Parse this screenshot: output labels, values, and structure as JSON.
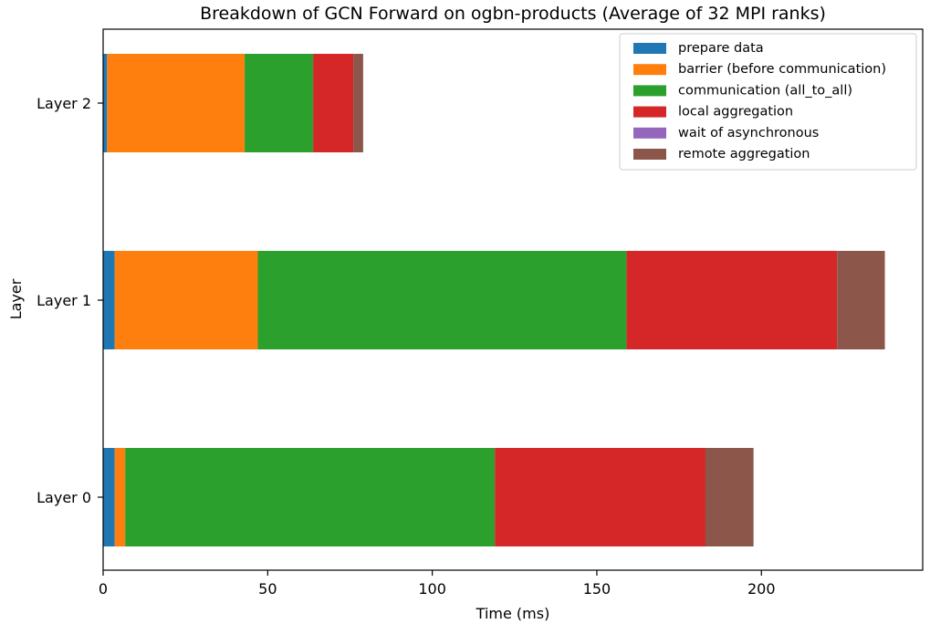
{
  "chart_data": {
    "type": "bar",
    "orientation": "horizontal",
    "stacked": true,
    "title": "Breakdown of GCN Forward on ogbn-products (Average of 32 MPI ranks)",
    "xlabel": "Time (ms)",
    "ylabel": "Layer",
    "xlim": [
      0,
      249
    ],
    "xticks": [
      0,
      50,
      100,
      150,
      200
    ],
    "xtick_labels": [
      "0",
      "50",
      "100",
      "150",
      "200"
    ],
    "categories": [
      "Layer 0",
      "Layer 1",
      "Layer 2"
    ],
    "grid": false,
    "legend_position": "top-right",
    "series": [
      {
        "name": "prepare data",
        "color": "#1f77b4",
        "values": [
          3.5,
          3.5,
          1.2
        ]
      },
      {
        "name": "barrier (before communication)",
        "color": "#ff7f0e",
        "values": [
          3.2,
          43.5,
          41.8
        ]
      },
      {
        "name": "communication (all_to_all)",
        "color": "#2ca02c",
        "values": [
          112.3,
          112.0,
          20.8
        ]
      },
      {
        "name": "local aggregation",
        "color": "#d62728",
        "values": [
          64.0,
          64.0,
          12.2
        ]
      },
      {
        "name": "wait of asynchronous",
        "color": "#9467bd",
        "values": [
          0.0,
          0.0,
          0.0
        ]
      },
      {
        "name": "remote aggregation",
        "color": "#8c564b",
        "values": [
          14.6,
          14.5,
          3.0
        ]
      }
    ]
  }
}
